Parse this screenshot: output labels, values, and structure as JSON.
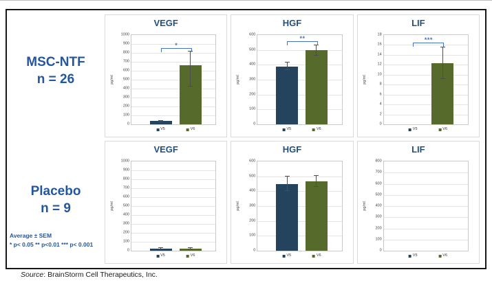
{
  "groups": [
    {
      "name": "MSC-NTF",
      "n_label": "n = 26"
    },
    {
      "name": "Placebo",
      "n_label": "n = 9"
    }
  ],
  "note": {
    "line1": "Average ± SEM",
    "line2": "* p< 0.05 ** p<0.01 *** p< 0.001"
  },
  "source": {
    "label": "Source",
    "text": ": BrainStorm Cell Therapeutics, Inc."
  },
  "colors": {
    "bar_blue": "#24435C",
    "bar_green": "#566A2B",
    "title_blue": "#1F5080",
    "group_label_blue": "#2456A0",
    "bracket_blue": "#4472C4",
    "error_bar_gray": "#4D4D4D"
  },
  "chart_data": [
    {
      "type": "bar",
      "group": "MSC-NTF",
      "title": "VEGF",
      "ylabel": "pg/ml",
      "ylim": [
        0,
        1000
      ],
      "ytick_step": 100,
      "categories": [
        "V5",
        "V6"
      ],
      "bars": [
        {
          "label": "V5",
          "series_color": "bar_blue",
          "value": 35,
          "err": [
            25,
            45
          ]
        },
        {
          "label": "V6",
          "series_color": "bar_green",
          "value": 660,
          "err": [
            425,
            820
          ]
        }
      ],
      "significance": {
        "stars": "*",
        "y": 855
      }
    },
    {
      "type": "bar",
      "group": "MSC-NTF",
      "title": "HGF",
      "ylabel": "pg/ml",
      "ylim": [
        0,
        600
      ],
      "ytick_step": 100,
      "categories": [
        "V5",
        "V6"
      ],
      "bars": [
        {
          "label": "V5",
          "series_color": "bar_blue",
          "value": 390,
          "err": [
            363,
            420
          ]
        },
        {
          "label": "V6",
          "series_color": "bar_green",
          "value": 500,
          "err": [
            462,
            537
          ]
        }
      ],
      "significance": {
        "stars": "**",
        "y": 558
      }
    },
    {
      "type": "bar",
      "group": "MSC-NTF",
      "title": "LIF",
      "ylabel": "pg/ml",
      "ylim": [
        0,
        18
      ],
      "ytick_step": 2,
      "categories": [
        "V5",
        "V6"
      ],
      "bars": [
        {
          "label": "V5",
          "series_color": "bar_blue",
          "value": 0,
          "err": null
        },
        {
          "label": "V6",
          "series_color": "bar_green",
          "value": 12.3,
          "err": [
            9.2,
            15.6
          ]
        }
      ],
      "significance": {
        "stars": "***",
        "y": 16.5
      }
    },
    {
      "type": "bar",
      "group": "Placebo",
      "title": "VEGF",
      "ylabel": "pg/ml",
      "ylim": [
        0,
        1000
      ],
      "ytick_step": 100,
      "categories": [
        "V5",
        "V6"
      ],
      "bars": [
        {
          "label": "V5",
          "series_color": "bar_blue",
          "value": 25,
          "err": [
            15,
            38
          ]
        },
        {
          "label": "V6",
          "series_color": "bar_green",
          "value": 25,
          "err": [
            14,
            36
          ]
        }
      ],
      "significance": null
    },
    {
      "type": "bar",
      "group": "Placebo",
      "title": "HGF",
      "ylabel": "pg/ml",
      "ylim": [
        0,
        600
      ],
      "ytick_step": 100,
      "categories": [
        "V5",
        "V6"
      ],
      "bars": [
        {
          "label": "V5",
          "series_color": "bar_blue",
          "value": 450,
          "err": [
            400,
            502
          ]
        },
        {
          "label": "V6",
          "series_color": "bar_green",
          "value": 468,
          "err": [
            428,
            510
          ]
        }
      ],
      "significance": null
    },
    {
      "type": "bar",
      "group": "Placebo",
      "title": "LIF",
      "ylabel": "pg/ml",
      "ylim": [
        0,
        800
      ],
      "ytick_step": 100,
      "categories": [
        "V5",
        "V6"
      ],
      "bars": [
        {
          "label": "V5",
          "series_color": "bar_blue",
          "value": 0,
          "err": null
        },
        {
          "label": "V6",
          "series_color": "bar_green",
          "value": 0,
          "err": null
        }
      ],
      "significance": null
    }
  ]
}
